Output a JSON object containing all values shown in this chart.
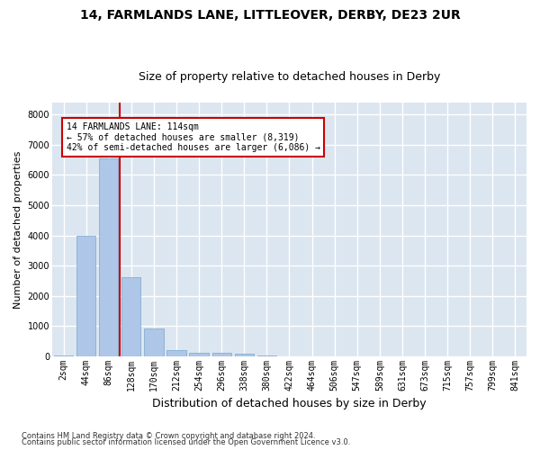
{
  "title_line1": "14, FARMLANDS LANE, LITTLEOVER, DERBY, DE23 2UR",
  "title_line2": "Size of property relative to detached houses in Derby",
  "xlabel": "Distribution of detached houses by size in Derby",
  "ylabel": "Number of detached properties",
  "footnote_line1": "Contains HM Land Registry data © Crown copyright and database right 2024.",
  "footnote_line2": "Contains public sector information licensed under the Open Government Licence v3.0.",
  "bar_labels": [
    "2sqm",
    "44sqm",
    "86sqm",
    "128sqm",
    "170sqm",
    "212sqm",
    "254sqm",
    "296sqm",
    "338sqm",
    "380sqm",
    "422sqm",
    "464sqm",
    "506sqm",
    "547sqm",
    "589sqm",
    "631sqm",
    "673sqm",
    "715sqm",
    "757sqm",
    "799sqm",
    "841sqm"
  ],
  "bar_values": [
    25,
    3980,
    6550,
    2600,
    900,
    190,
    120,
    100,
    90,
    25,
    0,
    0,
    0,
    0,
    0,
    0,
    0,
    0,
    0,
    0,
    0
  ],
  "bar_color": "#aec6e8",
  "bar_edgecolor": "#85afd4",
  "plot_bg_color": "#dce6f0",
  "fig_bg_color": "#ffffff",
  "grid_color": "#ffffff",
  "vline_color": "#cc0000",
  "vline_x_index": 3,
  "ylim_max": 8400,
  "yticks": [
    0,
    1000,
    2000,
    3000,
    4000,
    5000,
    6000,
    7000,
    8000
  ],
  "annotation_line1": "14 FARMLANDS LANE: 114sqm",
  "annotation_line2": "← 57% of detached houses are smaller (8,319)",
  "annotation_line3": "42% of semi-detached houses are larger (6,086) →",
  "ann_box_facecolor": "#ffffff",
  "ann_box_edgecolor": "#cc0000",
  "title_fontsize": 10,
  "subtitle_fontsize": 9,
  "ylabel_fontsize": 8,
  "xlabel_fontsize": 9,
  "tick_fontsize": 7,
  "ann_fontsize": 7,
  "footnote_fontsize": 6
}
